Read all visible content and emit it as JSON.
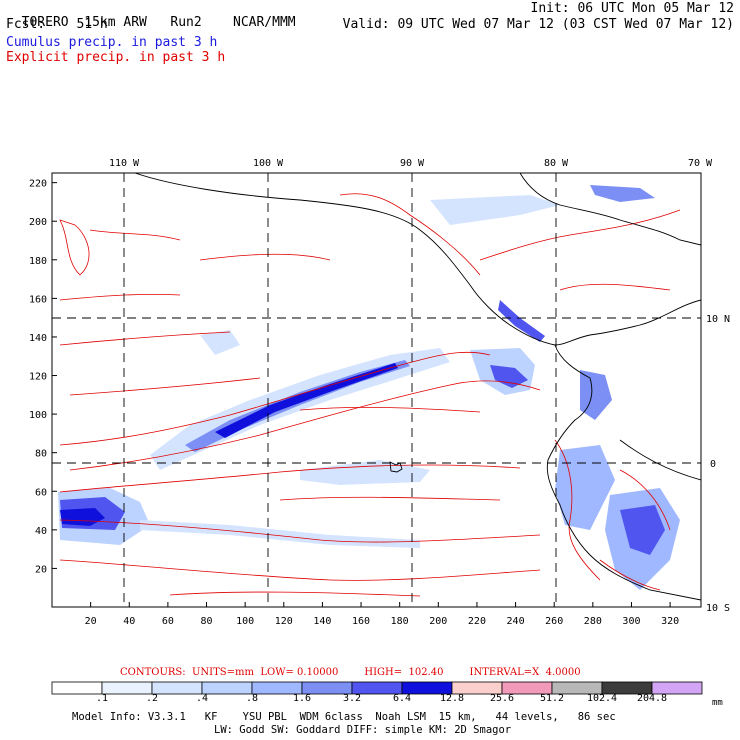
{
  "header": {
    "model": "TORERO  15km ARW",
    "run": "Run2",
    "org": "NCAR/MMM",
    "init": "Init: 06 UTC Mon 05 Mar 12",
    "fcst_label": "Fcst:",
    "fcst_value": "51 h",
    "valid": "Valid: 09 UTC Wed 07 Mar 12 (03 CST Wed 07 Mar 12)",
    "field1": "Cumulus precip. in past 3 h",
    "field2": "Explicit precip. in past 3 h"
  },
  "colors": {
    "cumulus_title": "#1a1adf",
    "explicit_title": "#e00000",
    "contour": "#e00000",
    "coast": "#000000"
  },
  "map": {
    "lon_labels": [
      "110 W",
      "100 W",
      "90 W",
      "80 W",
      "70 W"
    ],
    "lat_labels": [
      "10 N",
      "0",
      "10 S"
    ],
    "y_ticks": [
      "20",
      "40",
      "60",
      "80",
      "100",
      "120",
      "140",
      "160",
      "180",
      "200",
      "220"
    ],
    "x_ticks": [
      "20",
      "40",
      "60",
      "80",
      "100",
      "120",
      "140",
      "160",
      "180",
      "200",
      "220",
      "240",
      "260",
      "280",
      "300",
      "320"
    ]
  },
  "contour_info": {
    "units": "CONTOURS:  UNITS=mm  LOW= 0.10000",
    "high": "HIGH=  102.40",
    "interval": "INTERVAL=X  4.0000"
  },
  "legend": {
    "unit": "mm",
    "labels": [
      ".1",
      ".2",
      ".4",
      ".8",
      "1.6",
      "3.2",
      "6.4",
      "12.8",
      "25.6",
      "51.2",
      "102.4",
      "204.8"
    ],
    "colors": [
      "#ffffff",
      "#eaf2ff",
      "#d4e4ff",
      "#bcd2ff",
      "#a0b8ff",
      "#7b8ff5",
      "#4f55ee",
      "#1010dd",
      "#fbd0cc",
      "#f29aba",
      "#b8b8b8",
      "#3c3c3c",
      "#d2a6f4"
    ]
  },
  "footer": {
    "line1": "Model Info: V3.3.1   KF    YSU PBL  WDM 6class  Noah LSM  15 km,   44 levels,   86 sec",
    "line2": "LW: Godd SW: Goddard DIFF: simple KM: 2D Smagor"
  }
}
